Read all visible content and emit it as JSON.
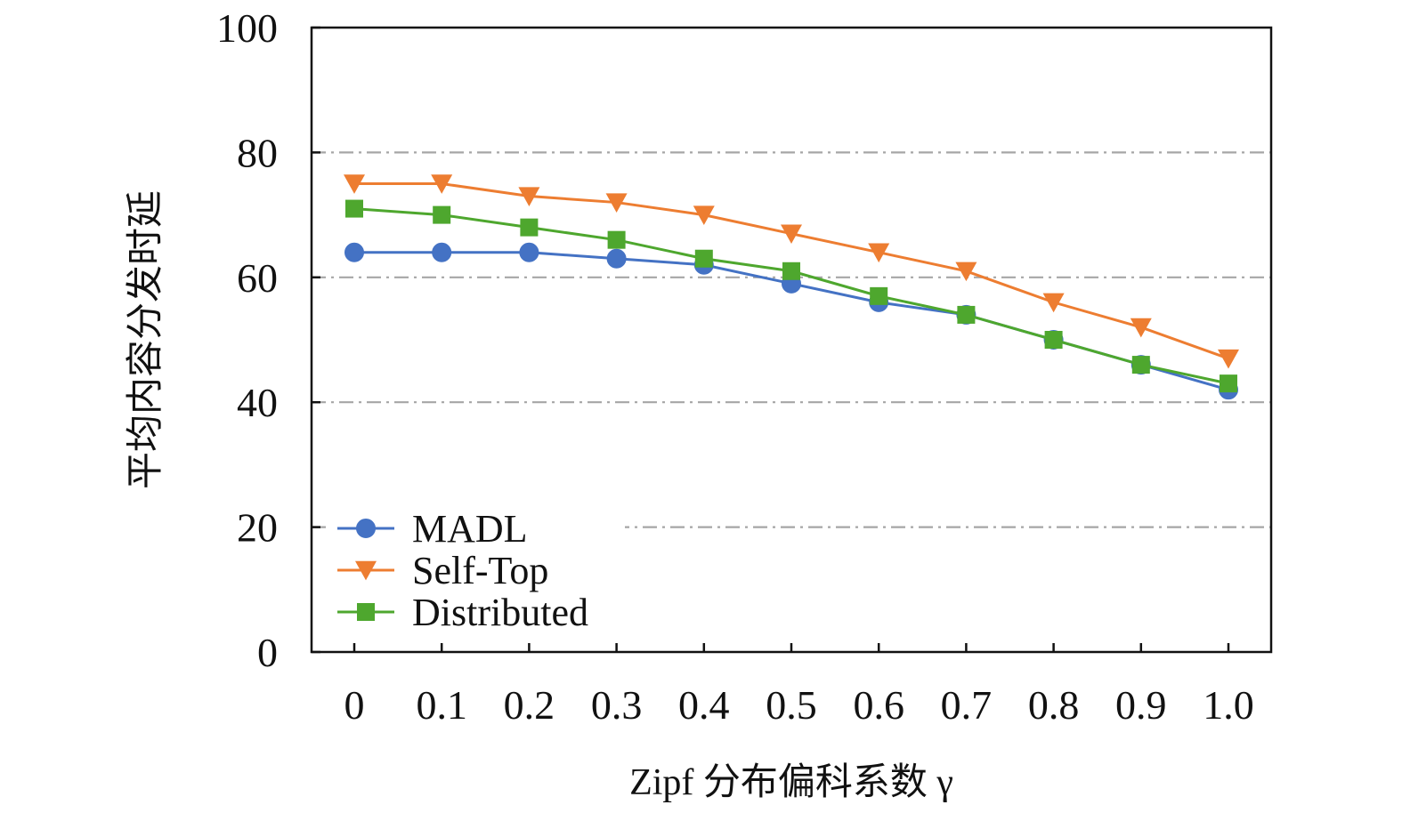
{
  "chart_data": {
    "type": "line",
    "x": [
      0,
      0.1,
      0.2,
      0.3,
      0.4,
      0.5,
      0.6,
      0.7,
      0.8,
      0.9,
      1.0
    ],
    "x_tick_labels": [
      "0",
      "0.1",
      "0.2",
      "0.3",
      "0.4",
      "0.5",
      "0.6",
      "0.7",
      "0.8",
      "0.9",
      "1.0"
    ],
    "y_ticks": [
      0,
      20,
      40,
      60,
      80,
      100
    ],
    "ylim": [
      0,
      100
    ],
    "xlabel": "Zipf 分布偏科系数 γ",
    "ylabel": "平均内容分发时延",
    "grid": "horizontal dash-dot",
    "legend_position": "bottom-left",
    "series": [
      {
        "name": "MADL",
        "color": "#4472c4",
        "marker": "circle",
        "values": [
          64,
          64,
          64,
          63,
          62,
          59,
          56,
          54,
          50,
          46,
          42
        ]
      },
      {
        "name": "Self-Top",
        "color": "#ed7d31",
        "marker": "triangle-down",
        "values": [
          75,
          75,
          73,
          72,
          70,
          67,
          64,
          61,
          56,
          52,
          47
        ]
      },
      {
        "name": "Distributed",
        "color": "#4ea72e",
        "marker": "square",
        "values": [
          71,
          70,
          68,
          66,
          63,
          61,
          57,
          54,
          50,
          46,
          43
        ]
      }
    ]
  }
}
